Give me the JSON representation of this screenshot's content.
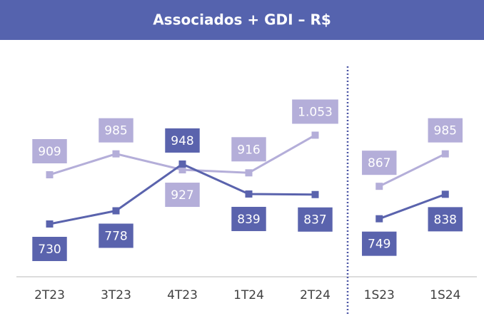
{
  "title": "Associados + GDI – R$",
  "chart_data": [
    {
      "type": "line",
      "categories": [
        "2T23",
        "3T23",
        "4T23",
        "1T24",
        "2T24"
      ],
      "ylim": [
        538,
        1350
      ],
      "series": [
        {
          "color": "#b4aed9",
          "values": [
            909,
            985,
            927,
            916,
            1053
          ],
          "value_labels": [
            "909",
            "985",
            "927",
            "916",
            "1.053"
          ]
        },
        {
          "color": "#5a63ad",
          "values": [
            730,
            778,
            948,
            839,
            837
          ]
        }
      ]
    },
    {
      "type": "line",
      "categories": [
        "1S23",
        "1S24"
      ],
      "ylim": [
        538,
        1350
      ],
      "series": [
        {
          "color": "#b4aed9",
          "values": [
            867,
            985
          ]
        },
        {
          "color": "#5a63ad",
          "values": [
            749,
            838
          ]
        }
      ]
    }
  ]
}
